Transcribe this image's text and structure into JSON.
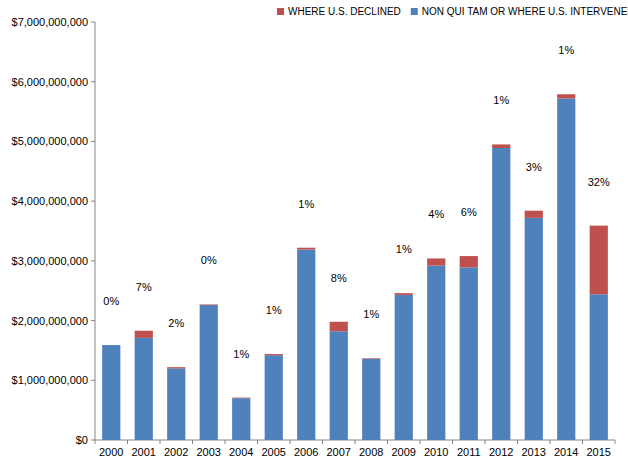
{
  "chart_data": {
    "type": "bar",
    "stacked": true,
    "legend": "top",
    "grid": false,
    "categories": [
      "2000",
      "2001",
      "2002",
      "2003",
      "2004",
      "2005",
      "2006",
      "2007",
      "2008",
      "2009",
      "2010",
      "2011",
      "2012",
      "2013",
      "2014",
      "2015"
    ],
    "series": [
      {
        "name": "NON QUI TAM OR WHERE U.S. INTERVENED",
        "color": "#4f81bd",
        "values": [
          1590000000,
          1710000000,
          1200000000,
          2260000000,
          700000000,
          1420000000,
          3190000000,
          1820000000,
          1360000000,
          2430000000,
          2920000000,
          2890000000,
          4890000000,
          3720000000,
          5720000000,
          2440000000
        ]
      },
      {
        "name": "WHERE U.S. DECLINED",
        "color": "#c0504d",
        "values": [
          0,
          120000000,
          20000000,
          10000000,
          10000000,
          20000000,
          30000000,
          160000000,
          10000000,
          30000000,
          120000000,
          190000000,
          60000000,
          120000000,
          70000000,
          1150000000
        ]
      }
    ],
    "annotations": [
      "0%",
      "7%",
      "2%",
      "0%",
      "1%",
      "1%",
      "1%",
      "8%",
      "1%",
      "1%",
      "4%",
      "6%",
      "1%",
      "3%",
      "1%",
      "32%"
    ],
    "ylim": [
      0,
      7000000000
    ],
    "yticks": [
      {
        "value": 0,
        "label": "$0"
      },
      {
        "value": 1000000000,
        "label": "$1,000,000,000"
      },
      {
        "value": 2000000000,
        "label": "$2,000,000,000"
      },
      {
        "value": 3000000000,
        "label": "$3,000,000,000"
      },
      {
        "value": 4000000000,
        "label": "$4,000,000,000"
      },
      {
        "value": 5000000000,
        "label": "$5,000,000,000"
      },
      {
        "value": 6000000000,
        "label": "$6,000,000,000"
      },
      {
        "value": 7000000000,
        "label": "$7,000,000,000"
      }
    ]
  }
}
